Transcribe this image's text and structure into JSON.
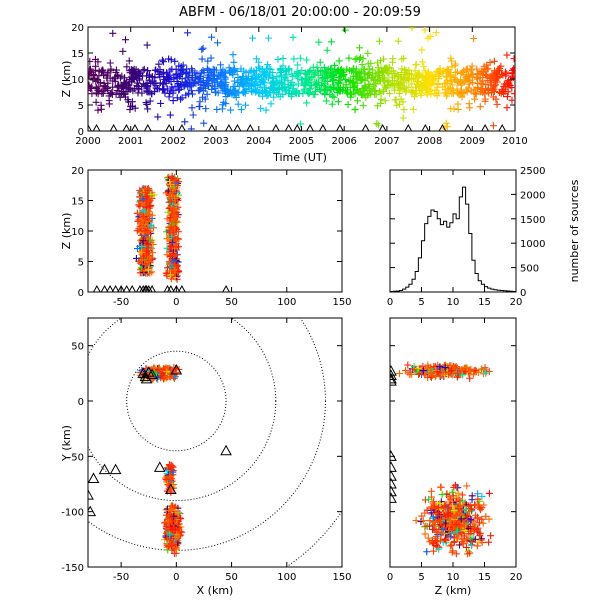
{
  "title": "ABFM - 06/18/01 20:00:00 - 20:09:59",
  "chart_data": [
    {
      "id": "time_height",
      "type": "scatter",
      "xlabel": "Time (UT)",
      "ylabel": "Z (km)",
      "xlim": [
        2000,
        2010
      ],
      "ylim": [
        0,
        20
      ],
      "xticks": [
        2000,
        2001,
        2002,
        2003,
        2004,
        2005,
        2006,
        2007,
        2008,
        2009,
        2010
      ],
      "yticks": [
        0,
        5,
        10,
        15,
        20
      ],
      "color_encoding": "time (violet to red)",
      "marker": "plus",
      "sensor_marker": "triangle",
      "sensors_x": [
        2000.0,
        2000.2,
        2000.6,
        2000.9,
        2001.1,
        2001.4,
        2001.9,
        2002.2,
        2002.9,
        2003.3,
        2003.5,
        2003.8,
        2004.4,
        2004.7,
        2004.9,
        2005.2,
        2005.5,
        2005.9,
        2006.5,
        2006.9,
        2007.5,
        2007.9,
        2008.3,
        2008.9,
        2009.3,
        2009.7
      ],
      "band_z": [
        4,
        14
      ],
      "dense_core_z": [
        7,
        12
      ]
    },
    {
      "id": "xz_projection",
      "type": "scatter",
      "xlabel": "",
      "ylabel": "Z (km)",
      "xlim": [
        -80,
        150
      ],
      "ylim": [
        0,
        20
      ],
      "xticks": [
        -50,
        0,
        50,
        100,
        150
      ],
      "yticks": [
        0,
        5,
        10,
        15,
        20
      ],
      "clusters": [
        {
          "x_center": -28,
          "x_spread": 5,
          "z_range": [
            3,
            17
          ]
        },
        {
          "x_center": -3,
          "x_spread": 4,
          "z_range": [
            2,
            19
          ]
        }
      ],
      "sensors_x": [
        -72,
        -65,
        -60,
        -55,
        -50,
        -45,
        -40,
        -33,
        -30,
        -28,
        -27,
        -25,
        -22,
        -8,
        -5,
        0,
        5,
        45
      ]
    },
    {
      "id": "altitude_histogram",
      "type": "line",
      "xlabel": "",
      "ylabel": "number of sources",
      "ylabel_position": "right",
      "xlim": [
        0,
        20
      ],
      "ylim": [
        0,
        2500
      ],
      "xticks": [
        0,
        5,
        10,
        15,
        20
      ],
      "yticks": [
        0,
        500,
        1000,
        1500,
        2000,
        2500
      ],
      "step": "histogram",
      "x": [
        0,
        0.5,
        1,
        1.5,
        2,
        2.5,
        3,
        3.5,
        4,
        4.5,
        5,
        5.5,
        6,
        6.5,
        7,
        7.5,
        8,
        8.5,
        9,
        9.5,
        10,
        10.5,
        11,
        11.5,
        12,
        12.5,
        13,
        13.5,
        14,
        14.5,
        15,
        15.5,
        16,
        16.5,
        17,
        17.5,
        18,
        18.5,
        19,
        19.5
      ],
      "values": [
        10,
        15,
        20,
        30,
        60,
        100,
        160,
        260,
        420,
        700,
        1050,
        1400,
        1550,
        1680,
        1650,
        1500,
        1380,
        1450,
        1330,
        1420,
        1600,
        1500,
        1950,
        2150,
        1800,
        1200,
        650,
        380,
        230,
        160,
        110,
        80,
        60,
        45,
        35,
        30,
        25,
        20,
        15,
        10
      ]
    },
    {
      "id": "plan_view",
      "type": "scatter",
      "xlabel": "X (km)",
      "ylabel": "Y (km)",
      "xlim": [
        -80,
        150
      ],
      "ylim": [
        -150,
        75
      ],
      "xticks": [
        -50,
        0,
        50,
        100,
        150
      ],
      "yticks": [
        -150,
        -100,
        -50,
        0,
        50
      ],
      "range_rings_center": [
        0,
        0
      ],
      "range_rings_radius": [
        45,
        90,
        135,
        180
      ],
      "clusters": [
        {
          "x_center": -15,
          "x_spread": 12,
          "y_center": 25,
          "y_spread": 4,
          "count": 260
        },
        {
          "x_center": -3,
          "x_spread": 5,
          "y_center": -115,
          "y_spread": 15,
          "count": 380
        },
        {
          "x_center": -6,
          "x_spread": 3,
          "y_center": -70,
          "y_spread": 10,
          "count": 60
        }
      ],
      "sensors": [
        [
          -30,
          25
        ],
        [
          -28,
          22
        ],
        [
          -25,
          26
        ],
        [
          -27,
          20
        ],
        [
          -22,
          24
        ],
        [
          0,
          28
        ],
        [
          -80,
          -85
        ],
        [
          -75,
          -70
        ],
        [
          -65,
          -62
        ],
        [
          -55,
          -62
        ],
        [
          -15,
          -60
        ],
        [
          -5,
          -80
        ],
        [
          45,
          -45
        ],
        [
          -78,
          -100
        ]
      ]
    },
    {
      "id": "yz_projection",
      "type": "scatter",
      "xlabel": "Z (km)",
      "ylabel": "",
      "xlim": [
        0,
        20
      ],
      "ylim": [
        -150,
        75
      ],
      "xticks": [
        0,
        5,
        10,
        15,
        20
      ],
      "yticks": [
        -150,
        -100,
        -50,
        0,
        50
      ],
      "clusters": [
        {
          "z_center": 9,
          "z_spread": 5,
          "y_center": 27,
          "y_spread": 4,
          "count": 220
        },
        {
          "z_center": 10,
          "z_spread": 4,
          "y_center": -108,
          "y_spread": 22,
          "count": 420
        }
      ],
      "sensors_y": [
        27,
        23,
        20,
        18,
        -50,
        -60,
        -68,
        -75,
        -82,
        -88
      ]
    }
  ],
  "colors": {
    "axes": "#000000",
    "sensor": "#000000",
    "palette": [
      "#5a005a",
      "#3b006f",
      "#1a0bd8",
      "#0a6cff",
      "#00c8ff",
      "#00e8a0",
      "#00e000",
      "#a0e000",
      "#ffe000",
      "#ff8c00",
      "#ff0000"
    ]
  }
}
